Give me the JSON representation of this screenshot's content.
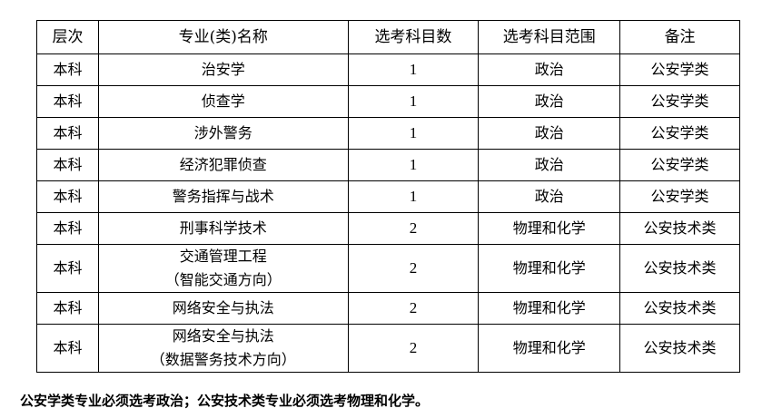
{
  "headers": [
    "层次",
    "专业(类)名称",
    "选考科目数",
    "选考科目范围",
    "备注"
  ],
  "rows": [
    {
      "level": "本科",
      "name": [
        "治安学"
      ],
      "count": "1",
      "scope": "政治",
      "remark": "公安学类"
    },
    {
      "level": "本科",
      "name": [
        "侦查学"
      ],
      "count": "1",
      "scope": "政治",
      "remark": "公安学类"
    },
    {
      "level": "本科",
      "name": [
        "涉外警务"
      ],
      "count": "1",
      "scope": "政治",
      "remark": "公安学类"
    },
    {
      "level": "本科",
      "name": [
        "经济犯罪侦查"
      ],
      "count": "1",
      "scope": "政治",
      "remark": "公安学类"
    },
    {
      "level": "本科",
      "name": [
        "警务指挥与战术"
      ],
      "count": "1",
      "scope": "政治",
      "remark": "公安学类"
    },
    {
      "level": "本科",
      "name": [
        "刑事科学技术"
      ],
      "count": "2",
      "scope": "物理和化学",
      "remark": "公安技术类"
    },
    {
      "level": "本科",
      "name": [
        "交通管理工程",
        "（智能交通方向）"
      ],
      "count": "2",
      "scope": "物理和化学",
      "remark": "公安技术类"
    },
    {
      "level": "本科",
      "name": [
        "网络安全与执法"
      ],
      "count": "2",
      "scope": "物理和化学",
      "remark": "公安技术类"
    },
    {
      "level": "本科",
      "name": [
        "网络安全与执法",
        "（数据警务技术方向）"
      ],
      "count": "2",
      "scope": "物理和化学",
      "remark": "公安技术类"
    }
  ],
  "note": "公安学类专业必须选考政治；公安技术类专业必须选考物理和化学。"
}
